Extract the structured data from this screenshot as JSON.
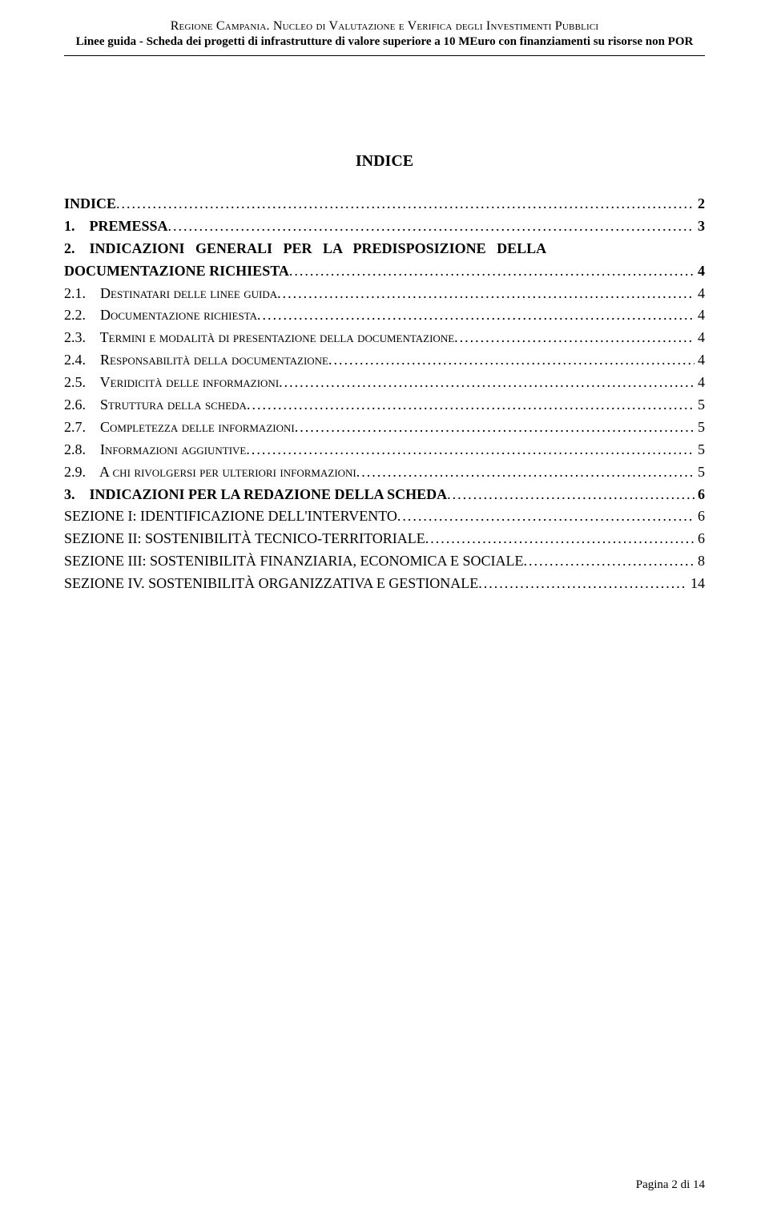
{
  "header": {
    "line1_prefix": "Regione Campania. Nucleo di ",
    "line1_suffix": "Valutazione e Verifica degli Investimenti Pubblici",
    "line2": "Linee guida - Scheda dei progetti di infrastrutture di valore superiore a 10 MEuro con finanziamenti su risorse non POR"
  },
  "index_title": "INDICE",
  "toc": [
    {
      "label": "INDICE",
      "page": "2",
      "bold": true,
      "smallcaps": false,
      "indent": 0
    },
    {
      "label": "1.    PREMESSA",
      "page": "3",
      "bold": true,
      "smallcaps": false,
      "indent": 0
    },
    {
      "label": "2.    INDICAZIONI   GENERALI   PER   LA   PREDISPOSIZIONE   DELLA",
      "page": "",
      "bold": true,
      "smallcaps": false,
      "indent": 0,
      "no_leader": true
    },
    {
      "label": "DOCUMENTAZIONE RICHIESTA",
      "page": "4",
      "bold": true,
      "smallcaps": false,
      "indent": 0
    },
    {
      "label": "2.1.    Destinatari delle linee guida",
      "page": "4",
      "bold": false,
      "smallcaps": true,
      "indent": 0
    },
    {
      "label": "2.2.    Documentazione richiesta",
      "page": "4",
      "bold": false,
      "smallcaps": true,
      "indent": 0
    },
    {
      "label": "2.3.    Termini e modalità di presentazione della documentazione",
      "page": "4",
      "bold": false,
      "smallcaps": true,
      "indent": 0
    },
    {
      "label": "2.4.    Responsabilità della documentazione",
      "page": "4",
      "bold": false,
      "smallcaps": true,
      "indent": 0
    },
    {
      "label": "2.5.    Veridicità delle informazioni",
      "page": "4",
      "bold": false,
      "smallcaps": true,
      "indent": 0
    },
    {
      "label": "2.6.    Struttura della scheda",
      "page": "5",
      "bold": false,
      "smallcaps": true,
      "indent": 0
    },
    {
      "label": "2.7.    Completezza delle informazioni",
      "page": "5",
      "bold": false,
      "smallcaps": true,
      "indent": 0
    },
    {
      "label": "2.8.    Informazioni aggiuntive",
      "page": "5",
      "bold": false,
      "smallcaps": true,
      "indent": 0
    },
    {
      "label": "2.9.    A chi rivolgersi per ulteriori informazioni",
      "page": "5",
      "bold": false,
      "smallcaps": true,
      "indent": 0
    },
    {
      "label": "3.    INDICAZIONI PER LA REDAZIONE DELLA SCHEDA",
      "page": "6",
      "bold": true,
      "smallcaps": false,
      "indent": 0
    },
    {
      "label": "SEZIONE I: IDENTIFICAZIONE DELL'INTERVENTO",
      "page": "6",
      "bold": false,
      "smallcaps": false,
      "indent": 0
    },
    {
      "label": "SEZIONE II: SOSTENIBILITÀ TECNICO-TERRITORIALE",
      "page": "6",
      "bold": false,
      "smallcaps": false,
      "indent": 0
    },
    {
      "label": "SEZIONE III: SOSTENIBILITÀ FINANZIARIA, ECONOMICA E SOCIALE",
      "page": "8",
      "bold": false,
      "smallcaps": false,
      "indent": 0
    },
    {
      "label": "SEZIONE IV. SOSTENIBILITÀ ORGANIZZATIVA E GESTIONALE",
      "page": "14",
      "bold": false,
      "smallcaps": false,
      "indent": 0
    }
  ],
  "leader_char": ".",
  "footer": "Pagina 2 di 14",
  "colors": {
    "text": "#000000",
    "background": "#ffffff",
    "rule": "#000000"
  },
  "fonts": {
    "body_family": "Times New Roman",
    "toc_size_pt": 14,
    "header1_size_pt": 12,
    "header2_size_pt": 11,
    "title_size_pt": 15
  }
}
